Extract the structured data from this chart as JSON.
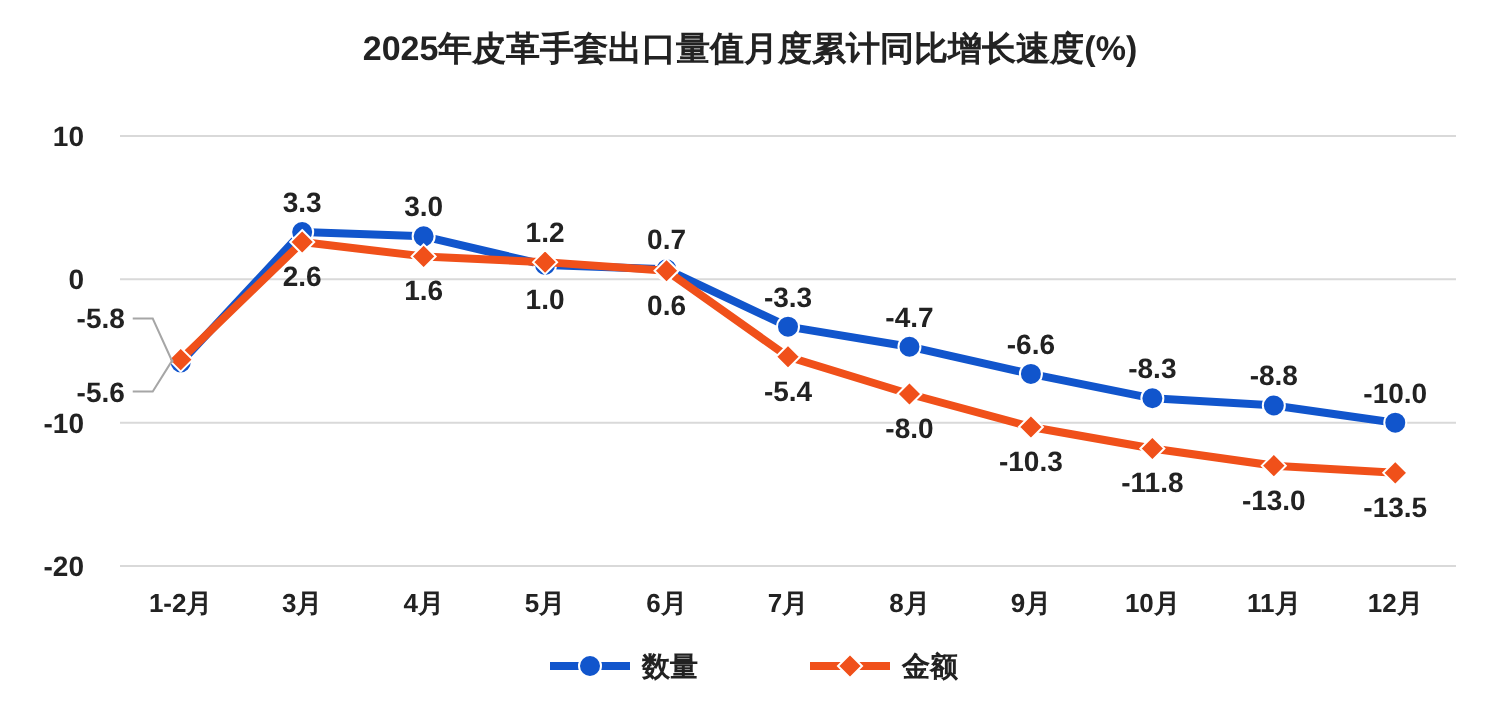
{
  "chart_data": {
    "type": "line",
    "title": "2025年皮革手套出口量值月度累计同比增长速度(%)",
    "categories": [
      "1-2月",
      "3月",
      "4月",
      "5月",
      "6月",
      "7月",
      "8月",
      "9月",
      "10月",
      "11月",
      "12月"
    ],
    "series": [
      {
        "name": "数量",
        "color": "#1155cc",
        "marker": "circle",
        "values": [
          -5.8,
          3.3,
          3.0,
          1.0,
          0.7,
          -3.3,
          -4.7,
          -6.6,
          -8.3,
          -8.8,
          -10.0
        ],
        "value_labels": [
          "-5.8",
          "3.3",
          "3.0",
          "1.0",
          "0.7",
          "-3.3",
          "-4.7",
          "-6.6",
          "-8.3",
          "-8.8",
          "-10.0"
        ]
      },
      {
        "name": "金额",
        "color": "#f0501a",
        "marker": "diamond",
        "values": [
          -5.6,
          2.6,
          1.6,
          1.2,
          0.6,
          -5.4,
          -8.0,
          -10.3,
          -11.8,
          -13.0,
          -13.5
        ],
        "value_labels": [
          "-5.6",
          "2.6",
          "1.6",
          "1.2",
          "0.6",
          "-5.4",
          "-8.0",
          "-10.3",
          "-11.8",
          "-13.0",
          "-13.5"
        ]
      }
    ],
    "ylim": [
      -20,
      10
    ],
    "yticks": [
      -20,
      -10,
      0,
      10
    ],
    "grid": "y",
    "legend": "bottom",
    "line_style": "solid"
  }
}
